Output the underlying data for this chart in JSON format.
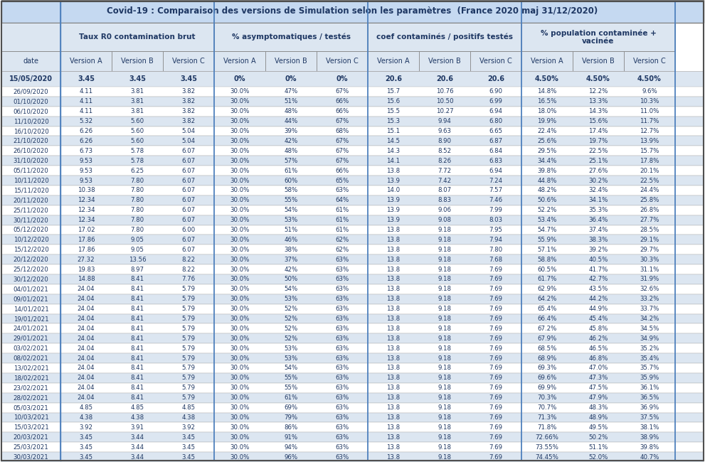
{
  "title": "Covid-19 : Comparaison des versions de Simulation selon les paramètres  (France 2020 maj 31/12/2020)",
  "col_groups": [
    "Taux R0 contamination brut",
    "% asymptomatiques / testés",
    "coef contaminés / positifs testés",
    "% population contaminée +\nvacinée"
  ],
  "sub_cols": [
    "Version A",
    "Version B",
    "Version C"
  ],
  "date_col": "date",
  "dates": [
    "15/05/2020",
    "26/09/2020",
    "01/10/2020",
    "06/10/2020",
    "11/10/2020",
    "16/10/2020",
    "21/10/2020",
    "26/10/2020",
    "31/10/2020",
    "05/11/2020",
    "10/11/2020",
    "15/11/2020",
    "20/11/2020",
    "25/11/2020",
    "30/11/2020",
    "05/12/2020",
    "10/12/2020",
    "15/12/2020",
    "20/12/2020",
    "25/12/2020",
    "30/12/2020",
    "04/01/2021",
    "09/01/2021",
    "14/01/2021",
    "19/01/2021",
    "24/01/2021",
    "29/01/2021",
    "03/02/2021",
    "08/02/2021",
    "13/02/2021",
    "18/02/2021",
    "23/02/2021",
    "28/02/2021",
    "05/03/2021",
    "10/03/2021",
    "15/03/2021",
    "20/03/2021",
    "25/03/2021",
    "30/03/2021"
  ],
  "r0_A": [
    "3.45",
    "4.11",
    "4.11",
    "4.11",
    "5.32",
    "6.26",
    "6.26",
    "6.73",
    "9.53",
    "9.53",
    "9.53",
    "10.38",
    "12.34",
    "12.34",
    "12.34",
    "17.02",
    "17.86",
    "17.86",
    "27.32",
    "19.83",
    "14.88",
    "24.04",
    "24.04",
    "24.04",
    "24.04",
    "24.04",
    "24.04",
    "24.04",
    "24.04",
    "24.04",
    "24.04",
    "24.04",
    "24.04",
    "4.85",
    "4.38",
    "3.92",
    "3.45",
    "3.45",
    "3.45"
  ],
  "r0_B": [
    "3.45",
    "3.81",
    "3.81",
    "3.81",
    "5.60",
    "5.60",
    "5.60",
    "5.78",
    "5.78",
    "6.25",
    "7.80",
    "7.80",
    "7.80",
    "7.80",
    "7.80",
    "7.80",
    "9.05",
    "9.05",
    "13.56",
    "8.97",
    "8.41",
    "8.41",
    "8.41",
    "8.41",
    "8.41",
    "8.41",
    "8.41",
    "8.41",
    "8.41",
    "8.41",
    "8.41",
    "8.41",
    "8.41",
    "4.85",
    "4.38",
    "3.91",
    "3.44",
    "3.44",
    "3.44"
  ],
  "r0_C": [
    "3.45",
    "3.82",
    "3.82",
    "3.82",
    "3.82",
    "5.04",
    "5.04",
    "6.07",
    "6.07",
    "6.07",
    "6.07",
    "6.07",
    "6.07",
    "6.07",
    "6.07",
    "6.00",
    "6.07",
    "6.07",
    "8.22",
    "8.22",
    "7.76",
    "5.79",
    "5.79",
    "5.79",
    "5.79",
    "5.79",
    "5.79",
    "5.79",
    "5.79",
    "5.79",
    "5.79",
    "5.79",
    "5.79",
    "4.85",
    "4.38",
    "3.92",
    "3.45",
    "3.45",
    "3.45"
  ],
  "asym_A": [
    "0%",
    "30.0%",
    "30.0%",
    "30.0%",
    "30.0%",
    "30.0%",
    "30.0%",
    "30.0%",
    "30.0%",
    "30.0%",
    "30.0%",
    "30.0%",
    "30.0%",
    "30.0%",
    "30.0%",
    "30.0%",
    "30.0%",
    "30.0%",
    "30.0%",
    "30.0%",
    "30.0%",
    "30.0%",
    "30.0%",
    "30.0%",
    "30.0%",
    "30.0%",
    "30.0%",
    "30.0%",
    "30.0%",
    "30.0%",
    "30.0%",
    "30.0%",
    "30.0%",
    "30.0%",
    "30.0%",
    "30.0%",
    "30.0%",
    "30.0%",
    "30.0%"
  ],
  "asym_B": [
    "0%",
    "47%",
    "51%",
    "48%",
    "44%",
    "39%",
    "42%",
    "48%",
    "57%",
    "61%",
    "60%",
    "58%",
    "55%",
    "54%",
    "53%",
    "51%",
    "46%",
    "38%",
    "37%",
    "42%",
    "50%",
    "54%",
    "53%",
    "52%",
    "52%",
    "52%",
    "52%",
    "53%",
    "53%",
    "54%",
    "55%",
    "55%",
    "61%",
    "69%",
    "79%",
    "86%",
    "91%",
    "94%",
    "96%"
  ],
  "asym_C": [
    "0%",
    "67%",
    "66%",
    "66%",
    "67%",
    "68%",
    "67%",
    "67%",
    "67%",
    "66%",
    "65%",
    "63%",
    "64%",
    "61%",
    "61%",
    "61%",
    "62%",
    "62%",
    "63%",
    "63%",
    "63%",
    "63%",
    "63%",
    "63%",
    "63%",
    "63%",
    "63%",
    "63%",
    "63%",
    "63%",
    "63%",
    "63%",
    "63%",
    "63%",
    "63%",
    "63%",
    "63%",
    "63%",
    "63%"
  ],
  "coef_A": [
    "20.6",
    "15.7",
    "15.6",
    "15.5",
    "15.3",
    "15.1",
    "14.5",
    "14.3",
    "14.1",
    "13.8",
    "13.9",
    "14.0",
    "13.9",
    "13.9",
    "13.9",
    "13.8",
    "13.8",
    "13.8",
    "13.8",
    "13.8",
    "13.8",
    "13.8",
    "13.8",
    "13.8",
    "13.8",
    "13.8",
    "13.8",
    "13.8",
    "13.8",
    "13.8",
    "13.8",
    "13.8",
    "13.8",
    "13.8",
    "13.8",
    "13.8",
    "13.8",
    "13.8",
    "13.8"
  ],
  "coef_B": [
    "20.6",
    "10.76",
    "10.50",
    "10.27",
    "9.94",
    "9.63",
    "8.90",
    "8.52",
    "8.26",
    "7.72",
    "7.42",
    "8.07",
    "8.83",
    "9.06",
    "9.08",
    "9.18",
    "9.18",
    "9.18",
    "9.18",
    "9.18",
    "9.18",
    "9.18",
    "9.18",
    "9.18",
    "9.18",
    "9.18",
    "9.18",
    "9.18",
    "9.18",
    "9.18",
    "9.18",
    "9.18",
    "9.18",
    "9.18",
    "9.18",
    "9.18",
    "9.18",
    "9.18",
    "9.18"
  ],
  "coef_C": [
    "20.6",
    "6.90",
    "6.99",
    "6.94",
    "6.80",
    "6.65",
    "6.87",
    "6.84",
    "6.83",
    "6.94",
    "7.24",
    "7.57",
    "7.46",
    "7.99",
    "8.03",
    "7.95",
    "7.94",
    "7.80",
    "7.68",
    "7.69",
    "7.69",
    "7.69",
    "7.69",
    "7.69",
    "7.69",
    "7.69",
    "7.69",
    "7.69",
    "7.69",
    "7.69",
    "7.69",
    "7.69",
    "7.69",
    "7.69",
    "7.69",
    "7.69",
    "7.69",
    "7.69",
    "7.69"
  ],
  "pop_A": [
    "4.50%",
    "14.8%",
    "16.5%",
    "18.0%",
    "19.9%",
    "22.4%",
    "25.6%",
    "29.5%",
    "34.4%",
    "39.8%",
    "44.8%",
    "48.2%",
    "50.6%",
    "52.2%",
    "53.4%",
    "54.7%",
    "55.9%",
    "57.1%",
    "58.8%",
    "60.5%",
    "61.7%",
    "62.9%",
    "64.2%",
    "65.4%",
    "66.4%",
    "67.2%",
    "67.9%",
    "68.5%",
    "68.9%",
    "69.3%",
    "69.6%",
    "69.9%",
    "70.3%",
    "70.7%",
    "71.3%",
    "71.8%",
    "72.66%",
    "73.55%",
    "74.45%"
  ],
  "pop_B": [
    "4.50%",
    "12.2%",
    "13.3%",
    "14.3%",
    "15.6%",
    "17.4%",
    "19.7%",
    "22.5%",
    "25.1%",
    "27.6%",
    "30.2%",
    "32.4%",
    "34.1%",
    "35.3%",
    "36.4%",
    "37.4%",
    "38.3%",
    "39.2%",
    "40.5%",
    "41.7%",
    "42.7%",
    "43.5%",
    "44.2%",
    "44.9%",
    "45.4%",
    "45.8%",
    "46.2%",
    "46.5%",
    "46.8%",
    "47.0%",
    "47.3%",
    "47.5%",
    "47.9%",
    "48.3%",
    "48.9%",
    "49.5%",
    "50.2%",
    "51.1%",
    "52.0%"
  ],
  "pop_C": [
    "4.50%",
    "9.6%",
    "10.3%",
    "11.0%",
    "11.7%",
    "12.7%",
    "13.9%",
    "15.7%",
    "17.8%",
    "20.1%",
    "22.5%",
    "24.4%",
    "25.8%",
    "26.8%",
    "27.7%",
    "28.5%",
    "29.1%",
    "29.7%",
    "30.3%",
    "31.1%",
    "31.9%",
    "32.6%",
    "33.2%",
    "33.7%",
    "34.2%",
    "34.5%",
    "34.9%",
    "35.2%",
    "35.4%",
    "35.7%",
    "35.9%",
    "36.1%",
    "36.5%",
    "36.9%",
    "37.5%",
    "38.1%",
    "38.9%",
    "39.8%",
    "40.7%"
  ],
  "bg_title": "#c5d9f1",
  "bg_group": "#dce6f1",
  "bg_colheader": "#dce6f1",
  "bg_row_special": "#dce6f1",
  "bg_row_even": "#dce6f1",
  "bg_row_odd": "#ffffff",
  "text_blue": "#1f3864",
  "border_dark": "#7f7f7f",
  "border_light": "#a6a6a6",
  "group_border": "#4f81bd"
}
